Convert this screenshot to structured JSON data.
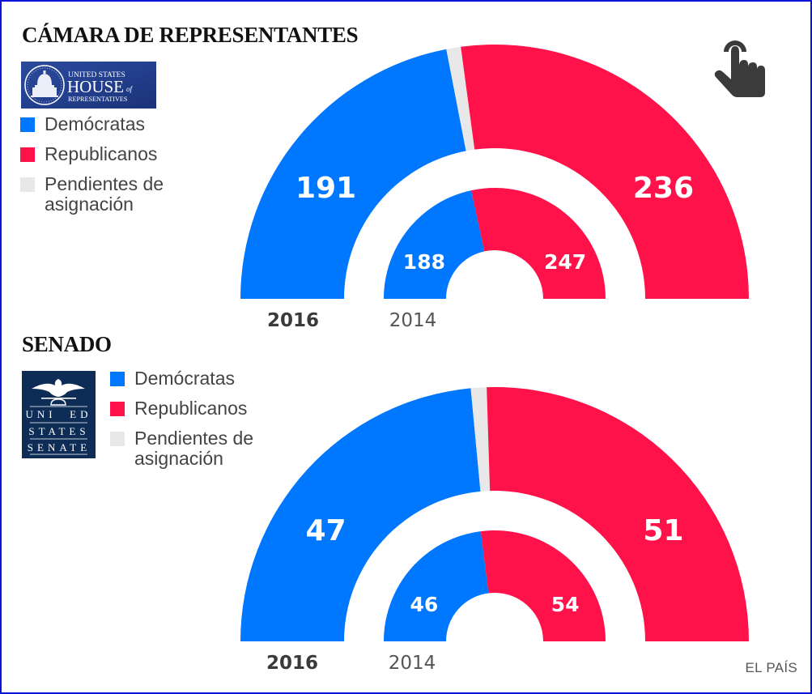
{
  "colors": {
    "democrats": "#0077ff",
    "republicans": "#ff1249",
    "pending": "#e8e8e8",
    "frame": "#0a14d8"
  },
  "house": {
    "title": "CÁMARA DE REPRESENTANTES",
    "logo": {
      "line1": "UNITED STATES",
      "line2": "HOUSE",
      "line2_suffix": "of",
      "line3": "REPRESENTATIVES"
    },
    "legend": [
      {
        "key": "democrats",
        "label": "Demócratas"
      },
      {
        "key": "republicans",
        "label": "Republicanos"
      },
      {
        "key": "pending",
        "label": "Pendientes de asignación"
      }
    ]
  },
  "senate": {
    "title": "SENADO",
    "logo": {
      "line1": "UNI  ED",
      "line2": "STATES",
      "line3": "SENATE"
    },
    "legend": [
      {
        "key": "democrats",
        "label": "Demócratas"
      },
      {
        "key": "republicans",
        "label": "Republicanos"
      },
      {
        "key": "pending",
        "label": "Pendientes de asignación"
      }
    ]
  },
  "icons": {
    "touch": "touch-hand-icon"
  },
  "source": "EL PAÍS",
  "chart_data": [
    {
      "type": "pie",
      "subtype": "semicircle-donut",
      "title": "CÁMARA DE REPRESENTANTES",
      "legend": [
        "Demócratas",
        "Republicanos",
        "Pendientes de asignación"
      ],
      "rings": [
        {
          "year": "2016",
          "ring": "outer",
          "total": 435,
          "segments": [
            {
              "name": "Demócratas",
              "value": 191,
              "label": "191"
            },
            {
              "name": "Pendientes de asignación",
              "value": 8,
              "label": ""
            },
            {
              "name": "Republicanos",
              "value": 236,
              "label": "236"
            }
          ]
        },
        {
          "year": "2014",
          "ring": "inner",
          "total": 435,
          "segments": [
            {
              "name": "Demócratas",
              "value": 188,
              "label": "188"
            },
            {
              "name": "Republicanos",
              "value": 247,
              "label": "247"
            }
          ]
        }
      ]
    },
    {
      "type": "pie",
      "subtype": "semicircle-donut",
      "title": "SENADO",
      "legend": [
        "Demócratas",
        "Republicanos",
        "Pendientes de asignación"
      ],
      "rings": [
        {
          "year": "2016",
          "ring": "outer",
          "total": 100,
          "segments": [
            {
              "name": "Demócratas",
              "value": 47,
              "label": "47"
            },
            {
              "name": "Pendientes de asignación",
              "value": 2,
              "label": ""
            },
            {
              "name": "Republicanos",
              "value": 51,
              "label": "51"
            }
          ]
        },
        {
          "year": "2014",
          "ring": "inner",
          "total": 100,
          "segments": [
            {
              "name": "Demócratas",
              "value": 46,
              "label": "46"
            },
            {
              "name": "Republicanos",
              "value": 54,
              "label": "54"
            }
          ]
        }
      ]
    }
  ]
}
